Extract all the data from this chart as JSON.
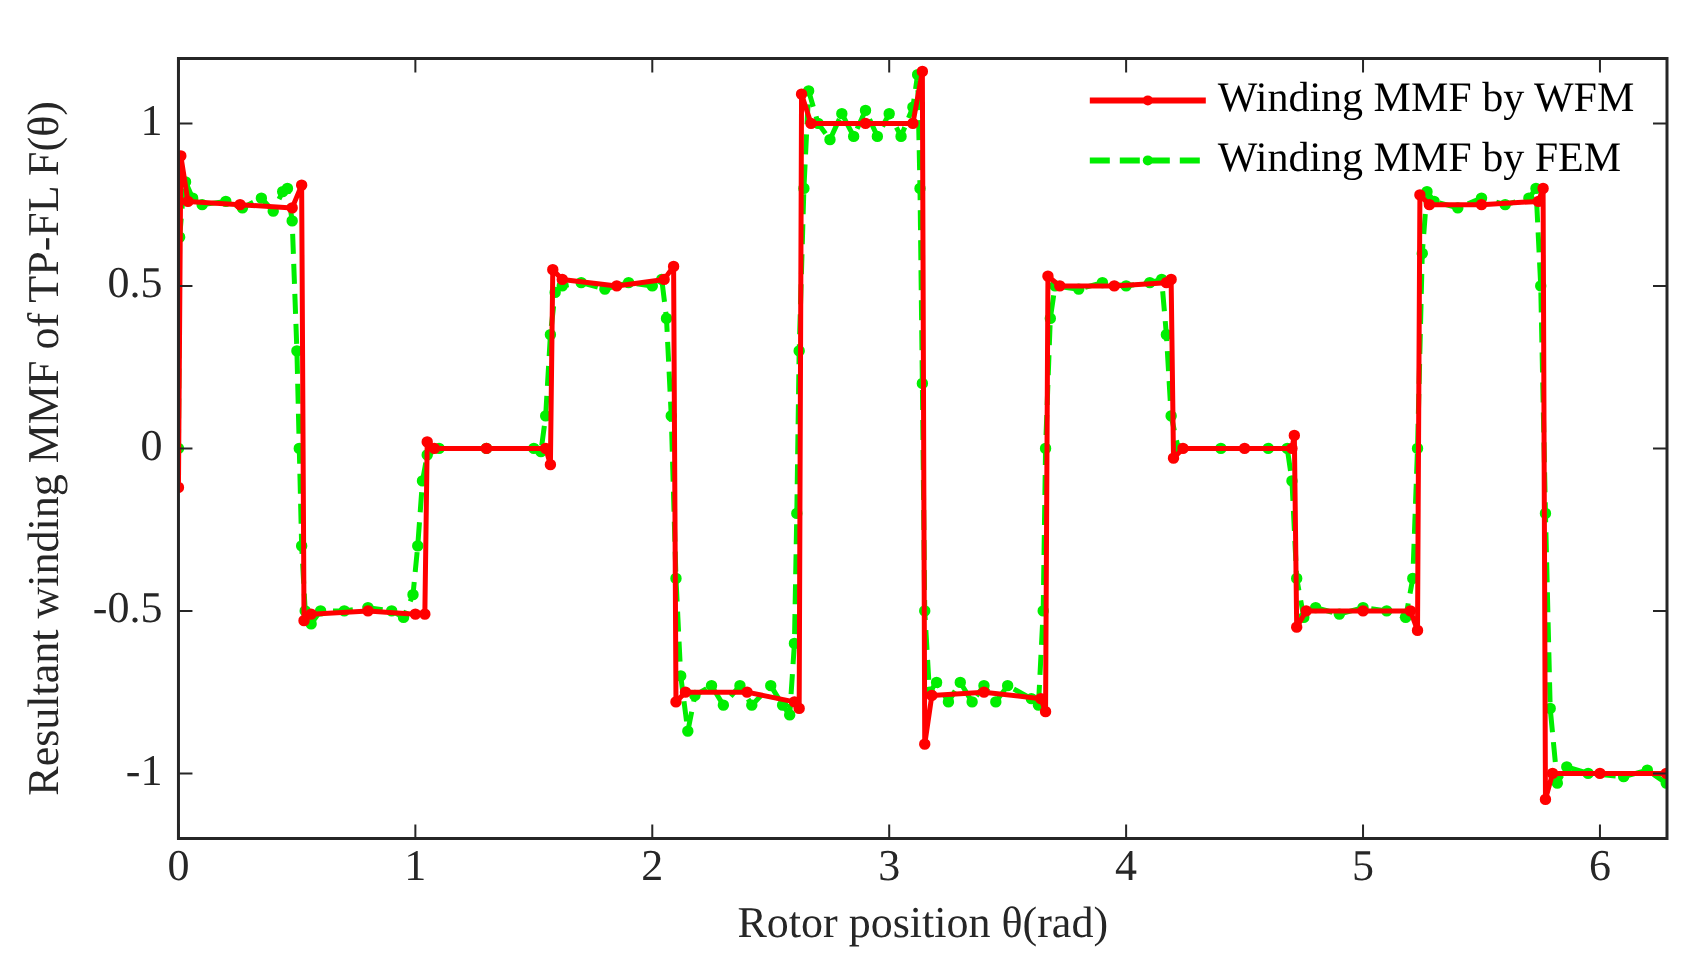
{
  "chart_data": {
    "type": "line",
    "xlabel": "Rotor position θ(rad)",
    "ylabel": "Resultant winding MMF of TP-FL F(θ)",
    "xlim": [
      0,
      6.283
    ],
    "xticks": [
      0,
      1,
      2,
      3,
      4,
      5,
      6
    ],
    "ylim": [
      -1.2,
      1.2
    ],
    "yticks": [
      -1,
      -0.5,
      0,
      0.5,
      1
    ],
    "grid": false,
    "legend": "top right",
    "marker": "circle",
    "series": [
      {
        "name": "Winding MMF by WFM",
        "color": "#ff0000",
        "line_style": "solid",
        "x": [
          0,
          0.01,
          0.04,
          0.26,
          0.48,
          0.52,
          0.53,
          0.56,
          0.8,
          1.0,
          1.04,
          1.05,
          1.08,
          1.3,
          1.55,
          1.57,
          1.58,
          1.62,
          1.85,
          2.05,
          2.09,
          2.1,
          2.14,
          2.4,
          2.6,
          2.62,
          2.63,
          2.67,
          2.9,
          3.1,
          3.14,
          3.15,
          3.18,
          3.4,
          3.64,
          3.66,
          3.67,
          3.72,
          3.95,
          4.17,
          4.19,
          4.2,
          4.24,
          4.5,
          4.7,
          4.71,
          4.72,
          4.76,
          5.0,
          5.2,
          5.23,
          5.24,
          5.28,
          5.5,
          5.74,
          5.76,
          5.77,
          5.8,
          6.0,
          6.28
        ],
        "values": [
          -0.12,
          0.9,
          0.76,
          0.75,
          0.74,
          0.81,
          -0.53,
          -0.51,
          -0.5,
          -0.51,
          -0.51,
          0.02,
          0,
          0,
          0,
          -0.05,
          0.55,
          0.52,
          0.5,
          0.52,
          0.56,
          -0.78,
          -0.75,
          -0.75,
          -0.78,
          -0.8,
          1.09,
          1.0,
          1.0,
          1.0,
          1.16,
          -0.91,
          -0.76,
          -0.75,
          -0.77,
          -0.81,
          0.53,
          0.5,
          0.5,
          0.51,
          0.52,
          -0.03,
          0,
          0,
          0,
          0.04,
          -0.55,
          -0.5,
          -0.5,
          -0.5,
          -0.56,
          0.78,
          0.75,
          0.75,
          0.76,
          0.8,
          -1.08,
          -1.0,
          -1.0,
          -1.0
        ]
      },
      {
        "name": "Winding MMF by FEM",
        "color": "#00ee00",
        "line_style": "dashed",
        "x": [
          0,
          0.005,
          0.02,
          0.03,
          0.06,
          0.1,
          0.2,
          0.27,
          0.35,
          0.4,
          0.44,
          0.46,
          0.48,
          0.5,
          0.51,
          0.52,
          0.535,
          0.56,
          0.6,
          0.7,
          0.8,
          0.9,
          0.95,
          0.99,
          1.01,
          1.03,
          1.05,
          1.1,
          1.3,
          1.5,
          1.53,
          1.55,
          1.57,
          1.59,
          1.62,
          1.7,
          1.8,
          1.9,
          2.0,
          2.04,
          2.06,
          2.08,
          2.1,
          2.12,
          2.15,
          2.18,
          2.25,
          2.3,
          2.37,
          2.42,
          2.5,
          2.55,
          2.58,
          2.6,
          2.61,
          2.62,
          2.64,
          2.66,
          2.7,
          2.75,
          2.8,
          2.85,
          2.9,
          2.95,
          3.0,
          3.05,
          3.1,
          3.12,
          3.13,
          3.14,
          3.15,
          3.17,
          3.2,
          3.25,
          3.3,
          3.35,
          3.4,
          3.45,
          3.5,
          3.6,
          3.63,
          3.65,
          3.66,
          3.68,
          3.7,
          3.8,
          3.9,
          4.0,
          4.1,
          4.15,
          4.17,
          4.19,
          4.22,
          4.4,
          4.6,
          4.68,
          4.7,
          4.72,
          4.75,
          4.8,
          4.9,
          5.0,
          5.1,
          5.18,
          5.21,
          5.23,
          5.25,
          5.27,
          5.3,
          5.4,
          5.5,
          5.6,
          5.7,
          5.73,
          5.75,
          5.77,
          5.79,
          5.82,
          5.86,
          5.95,
          6.1,
          6.2,
          6.28
        ],
        "values": [
          0,
          0.65,
          0.78,
          0.82,
          0.77,
          0.75,
          0.76,
          0.74,
          0.77,
          0.73,
          0.79,
          0.8,
          0.7,
          0.3,
          0,
          -0.3,
          -0.5,
          -0.54,
          -0.5,
          -0.5,
          -0.49,
          -0.5,
          -0.52,
          -0.45,
          -0.3,
          -0.1,
          -0.02,
          0,
          0,
          0,
          -0.01,
          0.1,
          0.35,
          0.48,
          0.5,
          0.51,
          0.49,
          0.51,
          0.5,
          0.52,
          0.4,
          0.1,
          -0.4,
          -0.7,
          -0.87,
          -0.76,
          -0.73,
          -0.79,
          -0.73,
          -0.79,
          -0.73,
          -0.79,
          -0.82,
          -0.6,
          -0.2,
          0.3,
          0.8,
          1.1,
          1.0,
          0.95,
          1.03,
          0.96,
          1.04,
          0.96,
          1.03,
          0.96,
          1.05,
          1.15,
          0.8,
          0.2,
          -0.5,
          -0.75,
          -0.72,
          -0.78,
          -0.72,
          -0.78,
          -0.73,
          -0.78,
          -0.73,
          -0.77,
          -0.79,
          -0.5,
          0,
          0.4,
          0.5,
          0.49,
          0.51,
          0.5,
          0.51,
          0.52,
          0.35,
          0.1,
          0,
          0,
          0,
          0,
          -0.1,
          -0.4,
          -0.52,
          -0.49,
          -0.51,
          -0.49,
          -0.5,
          -0.52,
          -0.4,
          0,
          0.6,
          0.79,
          0.76,
          0.74,
          0.77,
          0.75,
          0.77,
          0.8,
          0.5,
          -0.2,
          -0.8,
          -1.03,
          -0.98,
          -1.0,
          -1.01,
          -0.99,
          -1.03
        ]
      }
    ]
  }
}
